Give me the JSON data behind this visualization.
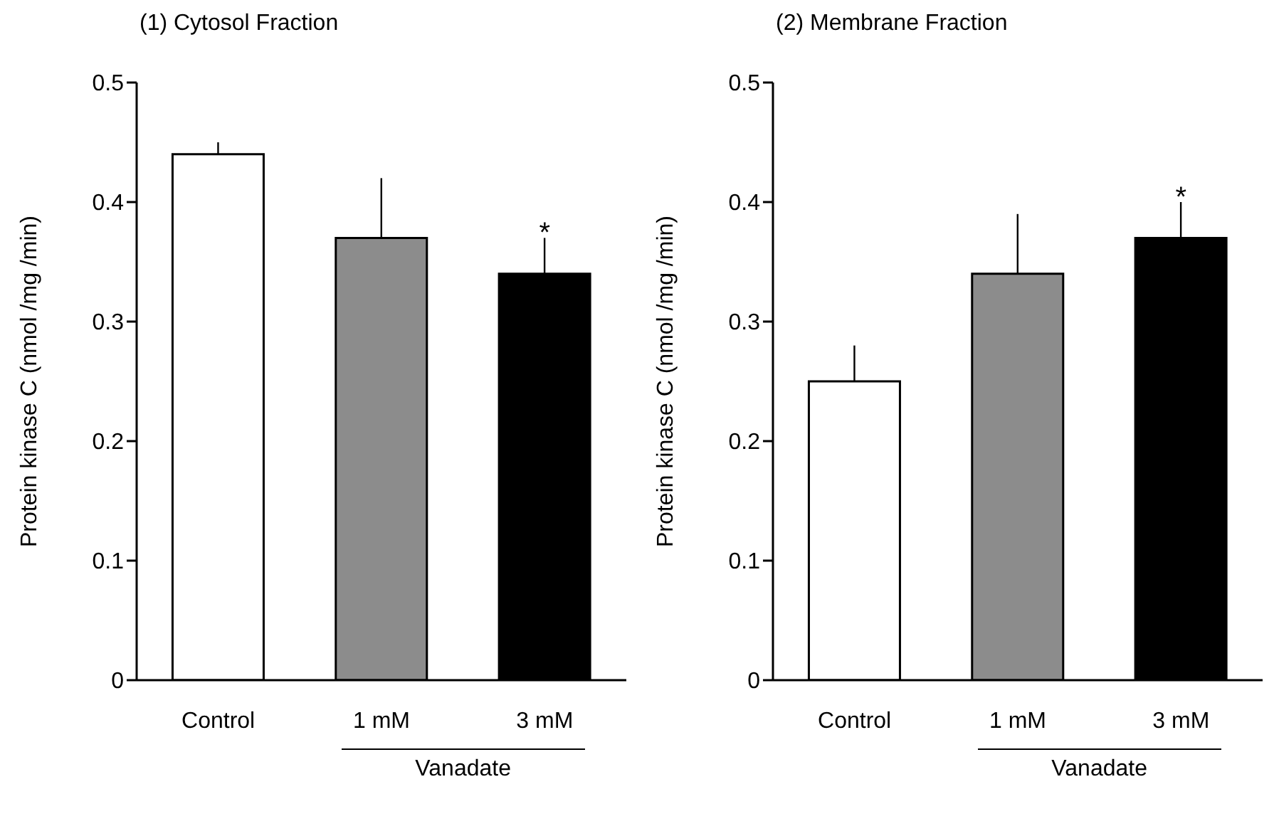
{
  "chart_data": [
    {
      "type": "bar",
      "title": "(1) Cytosol Fraction",
      "ylabel": "Protein kinase C (nmol /mg /min)",
      "categories": [
        "Control",
        "1 mM",
        "3 mM"
      ],
      "values": [
        0.44,
        0.37,
        0.34
      ],
      "errors": [
        [
          0.44,
          0.45
        ],
        [
          0.37,
          0.42
        ],
        [
          0.34,
          0.37
        ]
      ],
      "colors": [
        "#ffffff",
        "#8c8c8c",
        "#000000"
      ],
      "ylim": [
        0,
        0.5
      ],
      "yticks": [
        0,
        0.1,
        0.2,
        0.3,
        0.4,
        0.5
      ],
      "grid": false,
      "legend": false,
      "annotations": [
        "*",
        "Vanadate"
      ]
    },
    {
      "type": "bar",
      "title": "(2) Membrane Fraction",
      "ylabel": "Protein kinase C (nmol /mg /min)",
      "categories": [
        "Control",
        "1 mM",
        "3 mM"
      ],
      "values": [
        0.25,
        0.34,
        0.37
      ],
      "errors": [
        [
          0.25,
          0.28
        ],
        [
          0.34,
          0.39
        ],
        [
          0.37,
          0.4
        ]
      ],
      "colors": [
        "#ffffff",
        "#8c8c8c",
        "#000000"
      ],
      "ylim": [
        0,
        0.5
      ],
      "yticks": [
        0,
        0.1,
        0.2,
        0.3,
        0.4,
        0.5
      ],
      "grid": false,
      "legend": false,
      "annotations": [
        "*",
        "Vanadate"
      ]
    }
  ]
}
